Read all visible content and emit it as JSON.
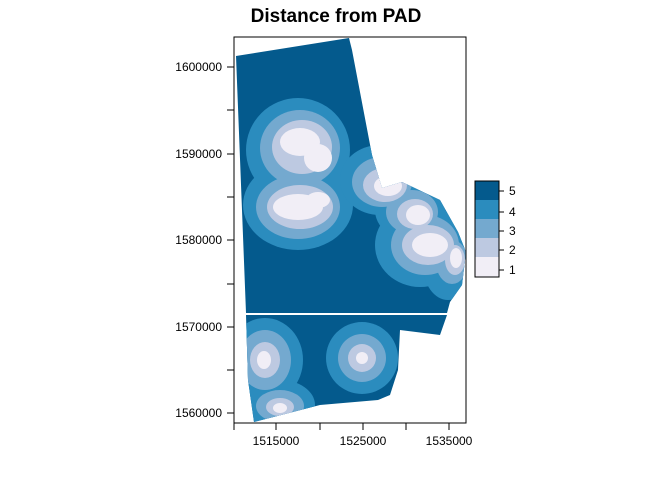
{
  "title": "Distance from PAD",
  "x_ticks": [
    "1515000",
    "1525000",
    "1535000"
  ],
  "y_ticks": [
    "1560000",
    "1570000",
    "1580000",
    "1590000",
    "1600000"
  ],
  "legend": {
    "labels": [
      "5",
      "4",
      "3",
      "2",
      "1"
    ],
    "colors": [
      "#045a8d",
      "#2b8cbe",
      "#74a9cf",
      "#bdc9e1",
      "#f1eef6"
    ]
  },
  "map": {
    "units": "projected metres",
    "x_range": [
      1510000,
      1537000
    ],
    "y_range": [
      1559000,
      1603500
    ]
  }
}
